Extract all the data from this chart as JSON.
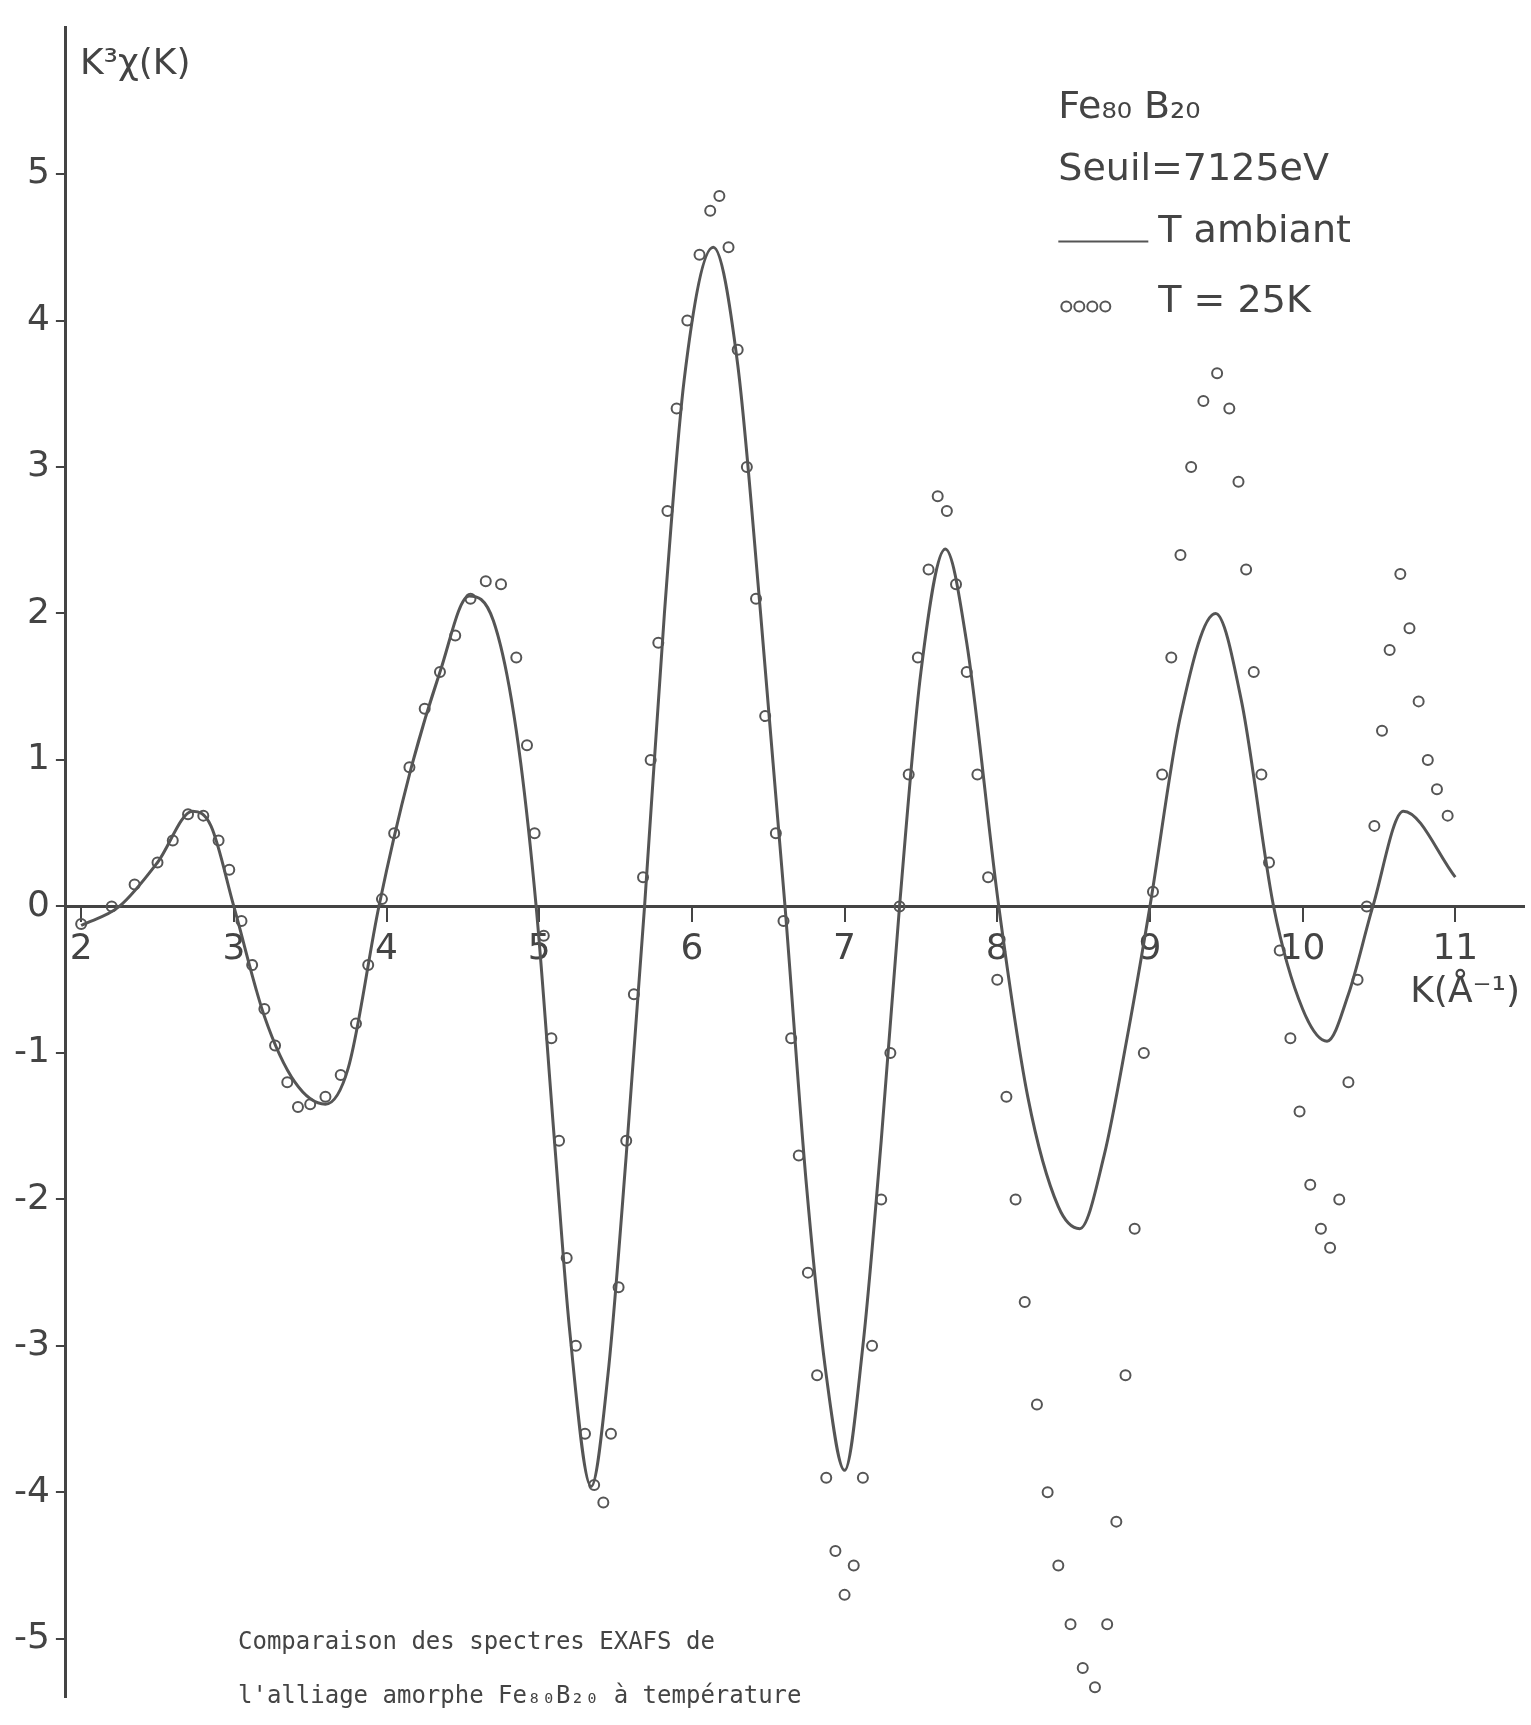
{
  "chart_data": {
    "type": "line",
    "title": "Fe₈₀ B₂₀",
    "subtitle": "Seuil=7125eV",
    "ylabel": "K³χ(K)",
    "xlabel": "K(Å⁻¹)",
    "annotations": [
      "Comparaison des spectres EXAFS de",
      "l'alliage amorphe Fe₈₀B₂₀ à température"
    ],
    "xlim": [
      1.9,
      11.45
    ],
    "xticks": [
      2,
      3,
      4,
      5,
      6,
      7,
      8,
      9,
      10,
      11
    ],
    "ylim": [
      -5.4,
      6
    ],
    "yticks": [
      -5,
      -4,
      -3,
      -2,
      -1,
      0,
      1,
      2,
      3,
      4,
      5
    ],
    "grid": false,
    "legend": "top right",
    "series": [
      {
        "name": "T ambiant",
        "type": "line",
        "marker": "none",
        "line_style": "solid",
        "color": "#555555",
        "x": [
          2,
          2.25,
          2.5,
          2.73,
          2.85,
          3.0,
          3.2,
          3.4,
          3.6,
          3.75,
          3.95,
          4.15,
          4.35,
          4.54,
          4.7,
          4.85,
          4.98,
          5.1,
          5.2,
          5.34,
          5.45,
          5.57,
          5.69,
          5.82,
          5.95,
          6.14,
          6.3,
          6.45,
          6.61,
          6.75,
          6.88,
          7.0,
          7.12,
          7.24,
          7.36,
          7.5,
          7.66,
          7.8,
          8.01,
          8.2,
          8.4,
          8.54,
          8.7,
          8.85,
          9.0,
          9.2,
          9.43,
          9.6,
          9.81,
          10.0,
          10.16,
          10.3,
          10.46,
          10.66,
          11.0
        ],
        "values": [
          -0.13,
          0,
          0.3,
          0.65,
          0.55,
          0,
          -0.75,
          -1.2,
          -1.35,
          -1.1,
          0,
          0.9,
          1.6,
          2.12,
          1.95,
          1.2,
          0,
          -1.6,
          -2.9,
          -3.96,
          -3.2,
          -1.7,
          0,
          2.0,
          3.6,
          4.5,
          3.7,
          2.0,
          0,
          -1.9,
          -3.2,
          -3.85,
          -3.0,
          -1.6,
          0,
          1.6,
          2.44,
          1.8,
          0,
          -1.3,
          -2.05,
          -2.2,
          -1.7,
          -0.9,
          0,
          1.3,
          2.0,
          1.4,
          0,
          -0.7,
          -0.92,
          -0.6,
          0,
          0.65,
          0.2
        ]
      },
      {
        "name": "T = 25K",
        "type": "scatter",
        "marker": "circle",
        "color": "#555555",
        "x": [
          2.0,
          2.2,
          2.35,
          2.5,
          2.6,
          2.7,
          2.8,
          2.9,
          2.97,
          3.05,
          3.12,
          3.2,
          3.27,
          3.35,
          3.42,
          3.5,
          3.6,
          3.7,
          3.8,
          3.88,
          3.97,
          4.05,
          4.15,
          4.25,
          4.35,
          4.45,
          4.55,
          4.65,
          4.75,
          4.85,
          4.92,
          4.97,
          5.03,
          5.08,
          5.13,
          5.18,
          5.24,
          5.3,
          5.36,
          5.42,
          5.47,
          5.52,
          5.57,
          5.62,
          5.68,
          5.73,
          5.78,
          5.84,
          5.9,
          5.97,
          6.05,
          6.12,
          6.18,
          6.24,
          6.3,
          6.36,
          6.42,
          6.48,
          6.55,
          6.6,
          6.65,
          6.7,
          6.76,
          6.82,
          6.88,
          6.94,
          7.0,
          7.06,
          7.12,
          7.18,
          7.24,
          7.3,
          7.36,
          7.42,
          7.48,
          7.55,
          7.61,
          7.67,
          7.73,
          7.8,
          7.87,
          7.94,
          8.0,
          8.06,
          8.12,
          8.18,
          8.26,
          8.33,
          8.4,
          8.48,
          8.56,
          8.64,
          8.72,
          8.78,
          8.84,
          8.9,
          8.96,
          9.02,
          9.08,
          9.14,
          9.2,
          9.27,
          9.35,
          9.44,
          9.52,
          9.58,
          9.63,
          9.68,
          9.73,
          9.78,
          9.85,
          9.92,
          9.98,
          10.05,
          10.12,
          10.18,
          10.24,
          10.3,
          10.36,
          10.42,
          10.47,
          10.52,
          10.57,
          10.64,
          10.7,
          10.76,
          10.82,
          10.88,
          10.95
        ],
        "values": [
          -0.12,
          0,
          0.15,
          0.3,
          0.45,
          0.63,
          0.62,
          0.45,
          0.25,
          -0.1,
          -0.4,
          -0.7,
          -0.95,
          -1.2,
          -1.37,
          -1.35,
          -1.3,
          -1.15,
          -0.8,
          -0.4,
          0.05,
          0.5,
          0.95,
          1.35,
          1.6,
          1.85,
          2.1,
          2.22,
          2.2,
          1.7,
          1.1,
          0.5,
          -0.2,
          -0.9,
          -1.6,
          -2.4,
          -3.0,
          -3.6,
          -3.95,
          -4.07,
          -3.6,
          -2.6,
          -1.6,
          -0.6,
          0.2,
          1.0,
          1.8,
          2.7,
          3.4,
          4.0,
          4.45,
          4.75,
          4.85,
          4.5,
          3.8,
          3.0,
          2.1,
          1.3,
          0.5,
          -0.1,
          -0.9,
          -1.7,
          -2.5,
          -3.2,
          -3.9,
          -4.4,
          -4.7,
          -4.5,
          -3.9,
          -3.0,
          -2.0,
          -1.0,
          0,
          0.9,
          1.7,
          2.3,
          2.8,
          2.7,
          2.2,
          1.6,
          0.9,
          0.2,
          -0.5,
          -1.3,
          -2.0,
          -2.7,
          -3.4,
          -4.0,
          -4.5,
          -4.9,
          -5.2,
          -5.33,
          -4.9,
          -4.2,
          -3.2,
          -2.2,
          -1.0,
          0.1,
          0.9,
          1.7,
          2.4,
          3.0,
          3.45,
          3.64,
          3.4,
          2.9,
          2.3,
          1.6,
          0.9,
          0.3,
          -0.3,
          -0.9,
          -1.4,
          -1.9,
          -2.2,
          -2.33,
          -2.0,
          -1.2,
          -0.5,
          0,
          0.55,
          1.2,
          1.75,
          2.27,
          1.9,
          1.4,
          1.0,
          0.8,
          0.62
        ]
      }
    ]
  }
}
